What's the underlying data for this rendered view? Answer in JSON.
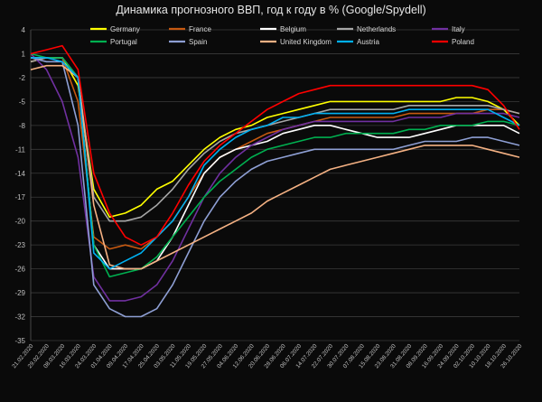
{
  "chart_data": {
    "type": "line",
    "title": "Динамика прогнозного ВВП, год к году в % (Google/Spydell)",
    "xlabel": "",
    "ylabel": "",
    "ylim": [
      -35,
      4
    ],
    "yticks": [
      4,
      1,
      -2,
      -5,
      -8,
      -11,
      -14,
      -17,
      -20,
      -23,
      -26,
      -29,
      -32,
      -35
    ],
    "grid": true,
    "legend": "top",
    "x": [
      "21.02.2020",
      "29.02.2020",
      "08.03.2020",
      "16.03.2020",
      "24.03.2020",
      "01.04.2020",
      "09.04.2020",
      "17.04.2020",
      "25.04.2020",
      "03.05.2020",
      "11.05.2020",
      "19.05.2020",
      "27.05.2020",
      "04.06.2020",
      "12.06.2020",
      "20.06.2020",
      "28.06.2020",
      "06.07.2020",
      "14.07.2020",
      "22.07.2020",
      "30.07.2020",
      "07.08.2020",
      "15.08.2020",
      "23.08.2020",
      "31.08.2020",
      "08.09.2020",
      "16.09.2020",
      "24.09.2020",
      "02.10.2020",
      "10.10.2020",
      "18.10.2020",
      "26.10.2020"
    ],
    "series": [
      {
        "name": "Germany",
        "color": "#ffff00",
        "values": [
          0,
          0.5,
          0.5,
          -3,
          -16,
          -19.5,
          -19,
          -18,
          -16,
          -15,
          -13,
          -11,
          -9.5,
          -8.5,
          -8,
          -7,
          -6.5,
          -6,
          -5.5,
          -5,
          -5,
          -5,
          -5,
          -5,
          -5,
          -5,
          -5,
          -4.5,
          -4.5,
          -5,
          -6,
          -8
        ]
      },
      {
        "name": "France",
        "color": "#c65911",
        "values": [
          0,
          0.5,
          0.5,
          -5,
          -22,
          -23.5,
          -23,
          -23.5,
          -22,
          -20,
          -17,
          -14,
          -12,
          -11,
          -10,
          -9,
          -8.5,
          -8,
          -7.5,
          -7,
          -7,
          -7,
          -7,
          -7,
          -6.5,
          -6.5,
          -6.5,
          -6.5,
          -6.5,
          -6,
          -6,
          -6.5
        ]
      },
      {
        "name": "Belgium",
        "color": "#ffffff",
        "values": [
          0.5,
          0.5,
          0.5,
          -2,
          -23,
          -26,
          -26,
          -26,
          -25,
          -22,
          -18,
          -14,
          -12,
          -11,
          -10.5,
          -10,
          -9,
          -8.5,
          -8,
          -8,
          -8.5,
          -9,
          -9.5,
          -9.5,
          -9.5,
          -9,
          -8.5,
          -8,
          -8,
          -8,
          -8,
          -9
        ]
      },
      {
        "name": "Netherlands",
        "color": "#a6a6a6",
        "values": [
          0,
          0.5,
          0.5,
          -2,
          -17,
          -20,
          -20,
          -19.5,
          -18,
          -16,
          -13.5,
          -11.5,
          -10,
          -9,
          -8.5,
          -8,
          -7.5,
          -7,
          -6.5,
          -6,
          -6,
          -6,
          -6,
          -6,
          -5.5,
          -5.5,
          -5.5,
          -5.5,
          -5.5,
          -5.5,
          -6,
          -6.5
        ]
      },
      {
        "name": "Italy",
        "color": "#7030a0",
        "values": [
          1,
          -1,
          -5,
          -12,
          -27,
          -30,
          -30,
          -29.5,
          -28,
          -25,
          -21,
          -17,
          -14,
          -12,
          -10.5,
          -9.5,
          -8.5,
          -8,
          -7.5,
          -7.5,
          -7.5,
          -7.5,
          -7.5,
          -7.5,
          -7,
          -7,
          -7,
          -6.5,
          -6.5,
          -6.5,
          -6.5,
          -7
        ]
      },
      {
        "name": "Portugal",
        "color": "#00b050",
        "values": [
          1,
          0.5,
          0.5,
          -2,
          -23,
          -27,
          -26.5,
          -26,
          -24.5,
          -22,
          -19.5,
          -17,
          -15,
          -13.5,
          -12,
          -11,
          -10.5,
          -10,
          -9.5,
          -9.5,
          -9,
          -9,
          -9,
          -9,
          -8.5,
          -8.5,
          -8,
          -8,
          -8,
          -7.5,
          -7.5,
          -8
        ]
      },
      {
        "name": "Spain",
        "color": "#8e9fd4",
        "values": [
          0.5,
          0,
          0,
          -8,
          -28,
          -31,
          -32,
          -32,
          -31,
          -28,
          -24,
          -20,
          -17,
          -15,
          -13.5,
          -12.5,
          -12,
          -11.5,
          -11,
          -11,
          -11,
          -11,
          -11,
          -11,
          -10.5,
          -10,
          -10,
          -10,
          -9.5,
          -9.5,
          -10,
          -10.5
        ]
      },
      {
        "name": "United Kingdom",
        "color": "#f4b183",
        "values": [
          -1,
          -0.5,
          -0.5,
          -2,
          -18,
          -25.5,
          -26,
          -26,
          -25,
          -24,
          -23,
          -22,
          -21,
          -20,
          -19,
          -17.5,
          -16.5,
          -15.5,
          -14.5,
          -13.5,
          -13,
          -12.5,
          -12,
          -11.5,
          -11,
          -10.5,
          -10.5,
          -10.5,
          -10.5,
          -11,
          -11.5,
          -12
        ]
      },
      {
        "name": "Austria",
        "color": "#00b0f0",
        "values": [
          0.5,
          0.5,
          0,
          -2,
          -24,
          -26,
          -25,
          -24,
          -22,
          -20,
          -17,
          -13,
          -11,
          -9.5,
          -8.5,
          -8,
          -7,
          -7,
          -6.5,
          -6.5,
          -6.5,
          -6.5,
          -6.5,
          -6.5,
          -6,
          -6,
          -6,
          -6,
          -6,
          -6,
          -7,
          -8
        ]
      },
      {
        "name": "Poland",
        "color": "#ff0000",
        "values": [
          1,
          1.5,
          2,
          -1,
          -14,
          -19,
          -22,
          -23,
          -22,
          -19,
          -15.5,
          -12.5,
          -10.5,
          -9,
          -7.5,
          -6,
          -5,
          -4,
          -3.5,
          -3,
          -3,
          -3,
          -3,
          -3,
          -3,
          -3,
          -3,
          -3,
          -3,
          -3.5,
          -5.5,
          -8.5
        ]
      }
    ]
  }
}
